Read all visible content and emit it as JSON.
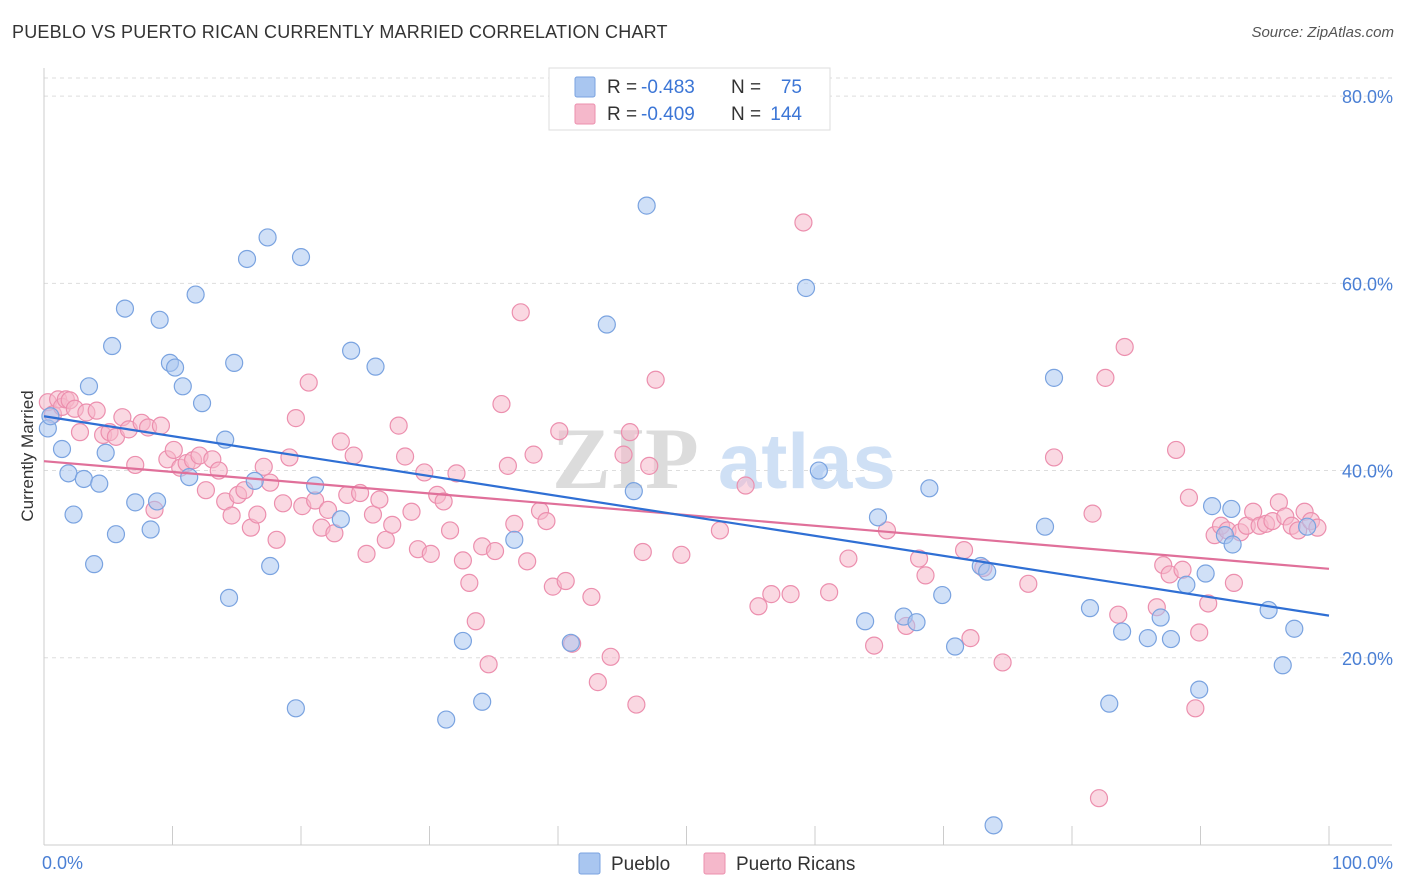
{
  "title": "PUEBLO VS PUERTO RICAN CURRENTLY MARRIED CORRELATION CHART",
  "source": "Source: ZipAtlas.com",
  "watermark": {
    "zip": "ZIP",
    "atlas": "atlas"
  },
  "colors": {
    "pueblo_fill": "#a9c6f0",
    "pueblo_stroke": "#7aa3e0",
    "pueblo_line": "#2f6fd4",
    "pr_fill": "#f5b8cb",
    "pr_stroke": "#ec8fae",
    "pr_line": "#e0709a",
    "axis_text": "#4a7fd4",
    "grid": "#dddddd"
  },
  "legend": {
    "pueblo": {
      "r_label": "R =",
      "r_value": "-0.483",
      "n_label": "N =",
      "n_value": "75"
    },
    "pr": {
      "r_label": "R =",
      "r_value": "-0.409",
      "n_label": "N =",
      "n_value": "144"
    }
  },
  "chart_data": {
    "type": "scatter",
    "title": "PUEBLO VS PUERTO RICAN CURRENTLY MARRIED CORRELATION CHART",
    "xlabel": "",
    "ylabel": "Currently Married",
    "xlim": [
      0,
      100
    ],
    "ylim": [
      0,
      83
    ],
    "x_tick_labels": [
      "0.0%",
      "100.0%"
    ],
    "y_ticks": [
      20,
      40,
      60,
      80
    ],
    "y_tick_labels": [
      "20.0%",
      "40.0%",
      "60.0%",
      "80.0%"
    ],
    "legend_position": "top-center",
    "series": [
      {
        "name": "Pueblo",
        "trend": {
          "x": [
            0,
            100
          ],
          "y": [
            45.8,
            24.5
          ]
        },
        "points": [
          [
            0.3,
            44.5
          ],
          [
            0.5,
            45.8
          ],
          [
            1.4,
            42.3
          ],
          [
            1.9,
            39.7
          ],
          [
            2.3,
            35.3
          ],
          [
            3.1,
            39.1
          ],
          [
            3.5,
            49.0
          ],
          [
            3.9,
            30.0
          ],
          [
            4.3,
            38.6
          ],
          [
            4.8,
            41.9
          ],
          [
            5.3,
            53.3
          ],
          [
            5.6,
            33.2
          ],
          [
            6.3,
            57.3
          ],
          [
            7.1,
            36.6
          ],
          [
            8.3,
            33.7
          ],
          [
            8.8,
            36.7
          ],
          [
            9.0,
            56.1
          ],
          [
            9.8,
            51.5
          ],
          [
            10.2,
            51.0
          ],
          [
            10.8,
            49.0
          ],
          [
            11.3,
            39.3
          ],
          [
            11.8,
            58.8
          ],
          [
            12.3,
            47.2
          ],
          [
            14.1,
            43.3
          ],
          [
            14.4,
            26.4
          ],
          [
            14.8,
            51.5
          ],
          [
            15.8,
            62.6
          ],
          [
            16.4,
            38.9
          ],
          [
            17.4,
            64.9
          ],
          [
            17.6,
            29.8
          ],
          [
            19.6,
            14.6
          ],
          [
            20.0,
            62.8
          ],
          [
            21.1,
            38.4
          ],
          [
            23.1,
            34.8
          ],
          [
            23.9,
            52.8
          ],
          [
            25.8,
            51.1
          ],
          [
            31.3,
            13.4
          ],
          [
            32.6,
            21.8
          ],
          [
            34.1,
            15.3
          ],
          [
            36.6,
            32.6
          ],
          [
            41.0,
            21.6
          ],
          [
            43.8,
            55.6
          ],
          [
            45.9,
            37.8
          ],
          [
            46.9,
            68.3
          ],
          [
            59.3,
            59.5
          ],
          [
            60.3,
            40.0
          ],
          [
            63.9,
            23.9
          ],
          [
            64.9,
            35.0
          ],
          [
            66.9,
            24.4
          ],
          [
            67.9,
            23.8
          ],
          [
            68.9,
            38.1
          ],
          [
            69.9,
            26.7
          ],
          [
            70.9,
            21.2
          ],
          [
            72.9,
            29.8
          ],
          [
            73.4,
            29.2
          ],
          [
            73.9,
            2.1
          ],
          [
            77.9,
            34.0
          ],
          [
            78.6,
            49.9
          ],
          [
            81.4,
            25.3
          ],
          [
            82.9,
            15.1
          ],
          [
            83.9,
            22.8
          ],
          [
            85.9,
            22.1
          ],
          [
            86.9,
            24.3
          ],
          [
            87.7,
            22.0
          ],
          [
            88.9,
            27.8
          ],
          [
            89.9,
            16.6
          ],
          [
            90.4,
            29.0
          ],
          [
            90.9,
            36.2
          ],
          [
            91.9,
            33.1
          ],
          [
            92.4,
            35.9
          ],
          [
            92.5,
            32.1
          ],
          [
            95.3,
            25.1
          ],
          [
            96.4,
            19.2
          ],
          [
            97.3,
            23.1
          ],
          [
            98.3,
            34.0
          ]
        ]
      },
      {
        "name": "Puerto Ricans",
        "trend": {
          "x": [
            0,
            100
          ],
          "y": [
            41.0,
            29.5
          ]
        },
        "points": [
          [
            0.3,
            47.3
          ],
          [
            0.7,
            46.0
          ],
          [
            1.1,
            47.6
          ],
          [
            1.4,
            46.8
          ],
          [
            1.7,
            47.6
          ],
          [
            2.0,
            47.5
          ],
          [
            2.4,
            46.6
          ],
          [
            2.8,
            44.1
          ],
          [
            3.3,
            46.2
          ],
          [
            4.1,
            46.4
          ],
          [
            4.6,
            43.8
          ],
          [
            5.1,
            44.1
          ],
          [
            5.6,
            43.6
          ],
          [
            6.1,
            45.7
          ],
          [
            6.6,
            44.4
          ],
          [
            7.1,
            40.6
          ],
          [
            7.6,
            45.1
          ],
          [
            8.1,
            44.6
          ],
          [
            8.6,
            35.8
          ],
          [
            9.1,
            44.8
          ],
          [
            9.6,
            41.2
          ],
          [
            10.1,
            42.2
          ],
          [
            10.6,
            40.3
          ],
          [
            11.1,
            40.8
          ],
          [
            11.6,
            41.1
          ],
          [
            12.1,
            41.6
          ],
          [
            12.6,
            37.9
          ],
          [
            13.1,
            41.2
          ],
          [
            13.6,
            40.0
          ],
          [
            14.1,
            36.7
          ],
          [
            14.6,
            35.2
          ],
          [
            15.1,
            37.4
          ],
          [
            15.6,
            37.9
          ],
          [
            16.1,
            33.9
          ],
          [
            16.6,
            35.3
          ],
          [
            17.1,
            40.4
          ],
          [
            17.6,
            38.7
          ],
          [
            18.1,
            32.6
          ],
          [
            18.6,
            36.5
          ],
          [
            19.1,
            41.4
          ],
          [
            19.6,
            45.6
          ],
          [
            20.1,
            36.2
          ],
          [
            20.6,
            49.4
          ],
          [
            21.1,
            36.8
          ],
          [
            21.6,
            33.9
          ],
          [
            22.1,
            35.8
          ],
          [
            22.6,
            33.3
          ],
          [
            23.1,
            43.1
          ],
          [
            23.6,
            37.4
          ],
          [
            24.1,
            41.6
          ],
          [
            24.6,
            37.6
          ],
          [
            25.1,
            31.1
          ],
          [
            25.6,
            35.3
          ],
          [
            26.1,
            36.9
          ],
          [
            26.6,
            32.6
          ],
          [
            27.1,
            34.2
          ],
          [
            27.6,
            44.8
          ],
          [
            28.1,
            41.5
          ],
          [
            28.6,
            35.6
          ],
          [
            29.1,
            31.6
          ],
          [
            29.6,
            39.8
          ],
          [
            30.1,
            31.1
          ],
          [
            30.6,
            37.4
          ],
          [
            31.1,
            36.7
          ],
          [
            31.6,
            33.6
          ],
          [
            32.1,
            39.7
          ],
          [
            32.6,
            30.4
          ],
          [
            33.1,
            28.0
          ],
          [
            33.6,
            23.9
          ],
          [
            34.1,
            31.9
          ],
          [
            34.6,
            19.3
          ],
          [
            35.1,
            31.4
          ],
          [
            35.6,
            47.1
          ],
          [
            36.1,
            40.5
          ],
          [
            36.6,
            34.3
          ],
          [
            37.1,
            56.9
          ],
          [
            37.6,
            30.3
          ],
          [
            38.1,
            41.7
          ],
          [
            38.6,
            35.7
          ],
          [
            39.1,
            34.6
          ],
          [
            39.6,
            27.6
          ],
          [
            40.1,
            44.2
          ],
          [
            40.6,
            28.2
          ],
          [
            41.1,
            21.5
          ],
          [
            42.6,
            26.5
          ],
          [
            43.1,
            17.4
          ],
          [
            44.1,
            20.1
          ],
          [
            45.1,
            41.7
          ],
          [
            45.6,
            44.1
          ],
          [
            46.1,
            15.0
          ],
          [
            46.6,
            31.3
          ],
          [
            47.1,
            40.5
          ],
          [
            47.6,
            49.7
          ],
          [
            49.6,
            31.0
          ],
          [
            52.6,
            33.6
          ],
          [
            54.6,
            38.4
          ],
          [
            55.6,
            25.5
          ],
          [
            56.6,
            26.8
          ],
          [
            58.1,
            26.8
          ],
          [
            59.1,
            66.5
          ],
          [
            61.1,
            27.0
          ],
          [
            62.6,
            30.6
          ],
          [
            64.6,
            21.3
          ],
          [
            65.6,
            33.6
          ],
          [
            67.1,
            23.4
          ],
          [
            68.1,
            30.6
          ],
          [
            68.6,
            28.8
          ],
          [
            71.6,
            31.5
          ],
          [
            72.1,
            22.1
          ],
          [
            73.1,
            29.6
          ],
          [
            74.6,
            19.5
          ],
          [
            76.6,
            27.9
          ],
          [
            78.6,
            41.4
          ],
          [
            81.6,
            35.4
          ],
          [
            82.1,
            5.0
          ],
          [
            82.6,
            49.9
          ],
          [
            83.6,
            24.6
          ],
          [
            84.1,
            53.2
          ],
          [
            86.6,
            25.4
          ],
          [
            87.1,
            29.9
          ],
          [
            87.6,
            28.9
          ],
          [
            88.1,
            42.2
          ],
          [
            88.6,
            29.4
          ],
          [
            89.1,
            37.1
          ],
          [
            89.6,
            14.6
          ],
          [
            89.9,
            22.7
          ],
          [
            90.6,
            25.8
          ],
          [
            91.1,
            33.1
          ],
          [
            91.6,
            34.1
          ],
          [
            92.1,
            33.6
          ],
          [
            92.6,
            28.0
          ],
          [
            93.1,
            33.4
          ],
          [
            93.6,
            34.1
          ],
          [
            94.1,
            35.6
          ],
          [
            94.6,
            34.1
          ],
          [
            95.1,
            34.3
          ],
          [
            95.6,
            34.6
          ],
          [
            96.1,
            36.6
          ],
          [
            96.6,
            35.1
          ],
          [
            97.1,
            34.1
          ],
          [
            97.6,
            33.6
          ],
          [
            98.1,
            35.6
          ],
          [
            98.6,
            34.6
          ],
          [
            99.1,
            33.9
          ]
        ]
      }
    ],
    "bottom_legend": [
      "Pueblo",
      "Puerto Ricans"
    ]
  }
}
